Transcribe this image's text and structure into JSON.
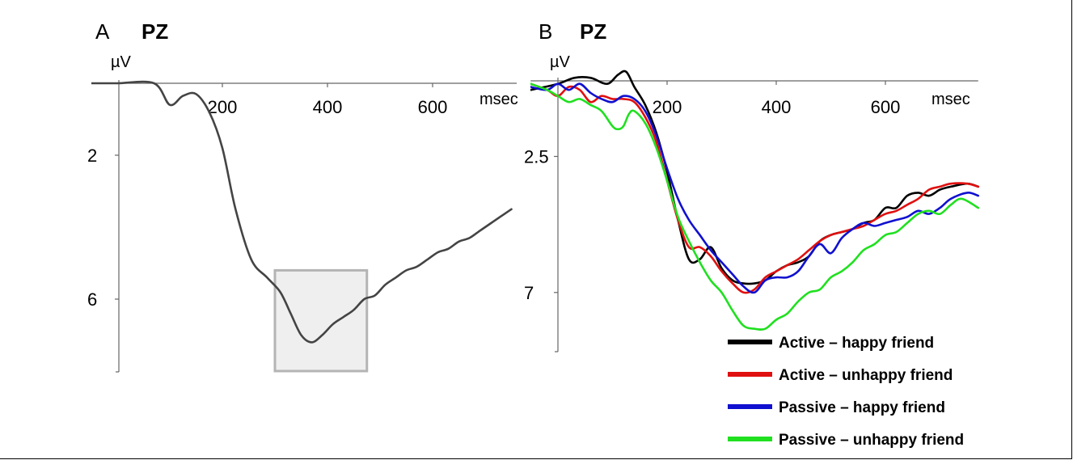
{
  "chart_data": [
    {
      "panel": "A",
      "type": "line",
      "title": "PZ",
      "xlabel": "msec",
      "ylabel": "µV",
      "x_ticks": [
        200,
        400,
        600
      ],
      "y_ticks": [
        2,
        6
      ],
      "y_inverted": true,
      "xlim": [
        -50,
        760
      ],
      "ylim": [
        0,
        8
      ],
      "highlight_window": {
        "x": [
          300,
          475
        ],
        "y": [
          5.2,
          8
        ]
      },
      "series": [
        {
          "color": "#444444",
          "points": [
            [
              -50,
              0
            ],
            [
              0,
              0
            ],
            [
              70,
              0
            ],
            [
              100,
              0.6
            ],
            [
              125,
              0.35
            ],
            [
              150,
              0.3
            ],
            [
              175,
              0.8
            ],
            [
              200,
              1.8
            ],
            [
              225,
              3.5
            ],
            [
              255,
              4.9
            ],
            [
              285,
              5.4
            ],
            [
              310,
              5.8
            ],
            [
              330,
              6.4
            ],
            [
              350,
              7.0
            ],
            [
              370,
              7.2
            ],
            [
              390,
              7.0
            ],
            [
              410,
              6.7
            ],
            [
              430,
              6.5
            ],
            [
              450,
              6.3
            ],
            [
              470,
              6.0
            ],
            [
              490,
              5.9
            ],
            [
              510,
              5.6
            ],
            [
              530,
              5.4
            ],
            [
              550,
              5.2
            ],
            [
              570,
              5.1
            ],
            [
              590,
              4.9
            ],
            [
              610,
              4.7
            ],
            [
              630,
              4.6
            ],
            [
              650,
              4.4
            ],
            [
              670,
              4.3
            ],
            [
              690,
              4.1
            ],
            [
              710,
              3.9
            ],
            [
              730,
              3.7
            ],
            [
              750,
              3.5
            ]
          ]
        }
      ]
    },
    {
      "panel": "B",
      "type": "line",
      "title": "PZ",
      "xlabel": "msec",
      "ylabel": "µV",
      "x_ticks": [
        200,
        400,
        600
      ],
      "y_ticks": [
        2.5,
        7
      ],
      "y_inverted": true,
      "xlim": [
        -50,
        770
      ],
      "ylim": [
        0,
        9
      ],
      "legend": "bottom-right",
      "series": [
        {
          "name": "Active – happy friend",
          "color": "#000000",
          "points": [
            [
              -50,
              0.3
            ],
            [
              0,
              0.1
            ],
            [
              30,
              -0.1
            ],
            [
              60,
              -0.1
            ],
            [
              90,
              0.1
            ],
            [
              110,
              -0.2
            ],
            [
              125,
              -0.3
            ],
            [
              140,
              0.2
            ],
            [
              160,
              0.8
            ],
            [
              180,
              1.7
            ],
            [
              200,
              3.0
            ],
            [
              220,
              4.6
            ],
            [
              240,
              5.9
            ],
            [
              260,
              5.9
            ],
            [
              280,
              5.5
            ],
            [
              300,
              6.2
            ],
            [
              320,
              6.6
            ],
            [
              340,
              6.7
            ],
            [
              360,
              6.7
            ],
            [
              380,
              6.6
            ],
            [
              400,
              6.3
            ],
            [
              420,
              6.1
            ],
            [
              440,
              6.0
            ],
            [
              460,
              5.8
            ],
            [
              480,
              5.3
            ],
            [
              500,
              5.1
            ],
            [
              520,
              5.0
            ],
            [
              540,
              4.9
            ],
            [
              560,
              4.7
            ],
            [
              580,
              4.6
            ],
            [
              600,
              4.2
            ],
            [
              620,
              4.2
            ],
            [
              640,
              3.8
            ],
            [
              660,
              3.7
            ],
            [
              680,
              3.8
            ],
            [
              700,
              3.6
            ],
            [
              720,
              3.5
            ],
            [
              750,
              3.4
            ],
            [
              770,
              3.5
            ]
          ]
        },
        {
          "name": "Active – unhappy friend",
          "color": "#e01010",
          "points": [
            [
              -50,
              0.1
            ],
            [
              -20,
              0.3
            ],
            [
              0,
              0.5
            ],
            [
              20,
              0.2
            ],
            [
              40,
              0.3
            ],
            [
              60,
              0.7
            ],
            [
              80,
              0.5
            ],
            [
              100,
              0.6
            ],
            [
              120,
              0.6
            ],
            [
              140,
              0.7
            ],
            [
              160,
              1.2
            ],
            [
              180,
              2.0
            ],
            [
              200,
              3.3
            ],
            [
              220,
              4.6
            ],
            [
              240,
              5.5
            ],
            [
              260,
              5.5
            ],
            [
              280,
              5.8
            ],
            [
              300,
              6.3
            ],
            [
              320,
              6.7
            ],
            [
              340,
              7.0
            ],
            [
              360,
              6.9
            ],
            [
              380,
              6.5
            ],
            [
              400,
              6.3
            ],
            [
              420,
              6.1
            ],
            [
              440,
              5.9
            ],
            [
              460,
              5.6
            ],
            [
              480,
              5.3
            ],
            [
              500,
              5.1
            ],
            [
              520,
              5.0
            ],
            [
              540,
              4.9
            ],
            [
              560,
              4.8
            ],
            [
              580,
              4.6
            ],
            [
              600,
              4.4
            ],
            [
              620,
              4.3
            ],
            [
              640,
              4.1
            ],
            [
              660,
              3.9
            ],
            [
              680,
              3.6
            ],
            [
              700,
              3.5
            ],
            [
              720,
              3.4
            ],
            [
              750,
              3.4
            ],
            [
              770,
              3.5
            ]
          ]
        },
        {
          "name": "Passive – happy friend",
          "color": "#1010d0",
          "points": [
            [
              -50,
              0.2
            ],
            [
              -20,
              0.3
            ],
            [
              0,
              0.1
            ],
            [
              20,
              0.3
            ],
            [
              40,
              0.1
            ],
            [
              60,
              0.4
            ],
            [
              80,
              0.6
            ],
            [
              100,
              0.7
            ],
            [
              120,
              0.5
            ],
            [
              140,
              0.6
            ],
            [
              160,
              1.0
            ],
            [
              180,
              1.8
            ],
            [
              200,
              2.9
            ],
            [
              220,
              3.9
            ],
            [
              240,
              4.6
            ],
            [
              260,
              5.1
            ],
            [
              280,
              5.6
            ],
            [
              300,
              6.0
            ],
            [
              320,
              6.4
            ],
            [
              340,
              6.8
            ],
            [
              360,
              7.0
            ],
            [
              380,
              6.6
            ],
            [
              400,
              6.5
            ],
            [
              420,
              6.5
            ],
            [
              440,
              6.3
            ],
            [
              460,
              5.8
            ],
            [
              480,
              5.4
            ],
            [
              500,
              5.7
            ],
            [
              520,
              5.2
            ],
            [
              540,
              4.9
            ],
            [
              560,
              4.7
            ],
            [
              580,
              4.8
            ],
            [
              600,
              4.7
            ],
            [
              620,
              4.6
            ],
            [
              640,
              4.5
            ],
            [
              660,
              4.3
            ],
            [
              680,
              4.4
            ],
            [
              700,
              4.2
            ],
            [
              720,
              3.9
            ],
            [
              750,
              3.7
            ],
            [
              770,
              3.8
            ]
          ]
        },
        {
          "name": "Passive – unhappy friend",
          "color": "#20e020",
          "points": [
            [
              -50,
              0.1
            ],
            [
              -20,
              0.3
            ],
            [
              0,
              0.5
            ],
            [
              20,
              0.7
            ],
            [
              40,
              0.6
            ],
            [
              60,
              0.8
            ],
            [
              80,
              1.0
            ],
            [
              100,
              1.5
            ],
            [
              110,
              1.6
            ],
            [
              120,
              1.5
            ],
            [
              130,
              1.1
            ],
            [
              140,
              1.0
            ],
            [
              160,
              1.4
            ],
            [
              180,
              2.2
            ],
            [
              200,
              3.3
            ],
            [
              220,
              4.5
            ],
            [
              240,
              5.3
            ],
            [
              260,
              6.0
            ],
            [
              280,
              6.6
            ],
            [
              300,
              7.0
            ],
            [
              320,
              7.6
            ],
            [
              340,
              8.1
            ],
            [
              360,
              8.2
            ],
            [
              380,
              8.2
            ],
            [
              400,
              7.9
            ],
            [
              420,
              7.7
            ],
            [
              440,
              7.3
            ],
            [
              460,
              7.0
            ],
            [
              480,
              6.9
            ],
            [
              500,
              6.5
            ],
            [
              520,
              6.3
            ],
            [
              540,
              6.0
            ],
            [
              560,
              5.6
            ],
            [
              580,
              5.4
            ],
            [
              600,
              5.1
            ],
            [
              620,
              5.0
            ],
            [
              640,
              4.7
            ],
            [
              660,
              4.4
            ],
            [
              680,
              4.3
            ],
            [
              700,
              4.4
            ],
            [
              720,
              4.1
            ],
            [
              740,
              3.9
            ],
            [
              770,
              4.2
            ]
          ]
        }
      ]
    }
  ]
}
